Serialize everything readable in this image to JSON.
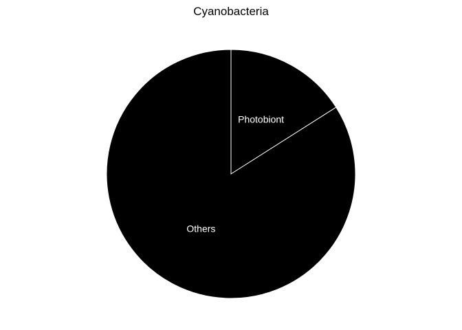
{
  "chart_data": {
    "type": "pie",
    "title": "Cyanobacteria",
    "slices": [
      {
        "label": "Photobiont",
        "value": 0.16
      },
      {
        "label": "Others",
        "value": 0.84
      }
    ],
    "start_angle_deg": 90,
    "direction": "clockwise",
    "legend": "none",
    "colors": {
      "fill": "#000000",
      "border": "#ffffff",
      "label": "#ffffff",
      "background": "#ffffff"
    }
  }
}
